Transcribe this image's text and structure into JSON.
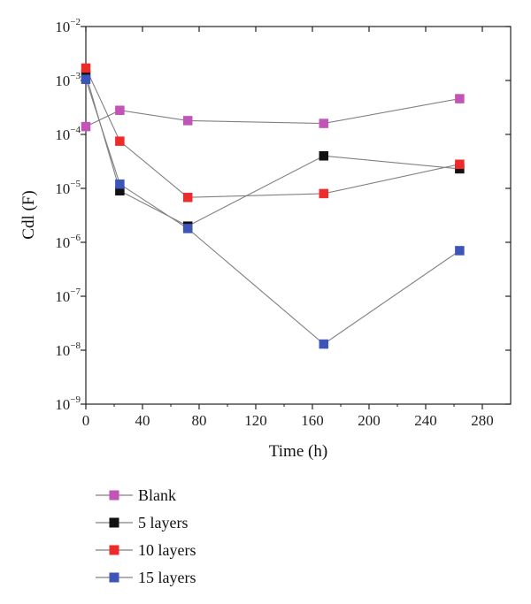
{
  "chart_data": {
    "type": "line",
    "title": "",
    "xlabel": "Time (h)",
    "ylabel": "Cdl (F)",
    "xlim": [
      0,
      300
    ],
    "xticks": [
      0,
      40,
      80,
      120,
      160,
      200,
      240,
      280
    ],
    "yscale": "log",
    "ylim": [
      1e-09,
      0.01
    ],
    "yticks": [
      {
        "base": "10",
        "exp": "−9",
        "value": 1e-09
      },
      {
        "base": "10",
        "exp": "−8",
        "value": 1e-08
      },
      {
        "base": "10",
        "exp": "−7",
        "value": 1e-07
      },
      {
        "base": "10",
        "exp": "−6",
        "value": 1e-06
      },
      {
        "base": "10",
        "exp": "−5",
        "value": 1e-05
      },
      {
        "base": "10",
        "exp": "−4",
        "value": 0.0001
      },
      {
        "base": "10",
        "exp": "−3",
        "value": 0.001
      },
      {
        "base": "10",
        "exp": "−2",
        "value": 0.01
      }
    ],
    "grid": false,
    "legend_position": "bottom-left, outside plot",
    "line_color": "#808080",
    "series": [
      {
        "name": "Blank",
        "color": "#c254b8",
        "x": [
          0,
          24,
          72,
          168,
          264
        ],
        "y": [
          0.00014,
          0.00028,
          0.00018,
          0.00016,
          0.00046
        ]
      },
      {
        "name": "5 layers",
        "color": "#111111",
        "x": [
          0,
          24,
          72,
          168,
          264
        ],
        "y": [
          0.0013,
          9e-06,
          2e-06,
          4e-05,
          2.3e-05
        ]
      },
      {
        "name": "10 layers",
        "color": "#ee2b2b",
        "x": [
          0,
          24,
          72,
          168,
          264
        ],
        "y": [
          0.0017,
          7.5e-05,
          6.8e-06,
          8e-06,
          2.8e-05
        ]
      },
      {
        "name": "15 layers",
        "color": "#3d55b8",
        "x": [
          0,
          24,
          72,
          168,
          264
        ],
        "y": [
          0.00105,
          1.2e-05,
          1.8e-06,
          1.3e-08,
          7e-07
        ]
      }
    ]
  }
}
